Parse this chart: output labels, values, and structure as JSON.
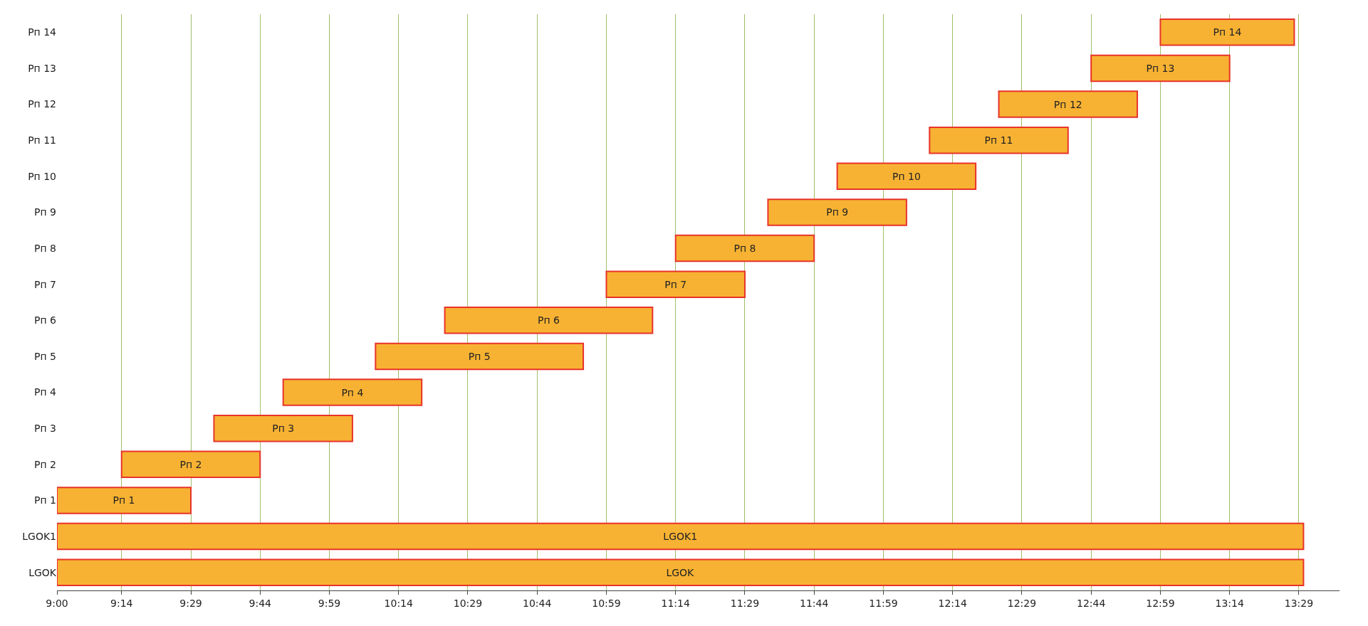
{
  "chart_data": {
    "type": "bar",
    "orientation": "horizontal",
    "categories": [
      "Рп 14",
      "Рп 13",
      "Рп 12",
      "Рп 11",
      "Рп 10",
      "Рп 9",
      "Рп 8",
      "Рп 7",
      "Рп 6",
      "Рп 5",
      "Рп 4",
      "Рп 3",
      "Рп 2",
      "Рп 1",
      "LGOK1",
      "LGOK"
    ],
    "base": [
      12.9833,
      12.7333,
      12.4,
      12.15,
      11.8167,
      11.5667,
      11.2333,
      10.9833,
      10.4,
      10.15,
      9.8167,
      9.5667,
      9.2333,
      9.0,
      9.0,
      9.0
    ],
    "values": [
      0.4833,
      0.5,
      0.5,
      0.5,
      0.5,
      0.5,
      0.5,
      0.5,
      0.75,
      0.75,
      0.5,
      0.5,
      0.5,
      0.4833,
      4.5,
      4.5
    ],
    "value_labels": [
      "Рп 14",
      "Рп 13",
      "Рп 12",
      "Рп 11",
      "Рп 10",
      "Рп 9",
      "Рп 8",
      "Рп 7",
      "Рп 6",
      "Рп 5",
      "Рп 4",
      "Рп 3",
      "Рп 2",
      "Рп 1",
      "LGOK1",
      "LGOK"
    ],
    "color": "#f7b233",
    "xlim": [
      9.0,
      13.63
    ],
    "xticks": [
      {
        "value": 9.0,
        "label": "9:00"
      },
      {
        "value": 9.2333,
        "label": "9:14"
      },
      {
        "value": 9.4833,
        "label": "9:29"
      },
      {
        "value": 9.7333,
        "label": "9:44"
      },
      {
        "value": 9.9833,
        "label": "9:59"
      },
      {
        "value": 10.2333,
        "label": "10:14"
      },
      {
        "value": 10.4833,
        "label": "10:29"
      },
      {
        "value": 10.7333,
        "label": "10:44"
      },
      {
        "value": 10.9833,
        "label": "10:59"
      },
      {
        "value": 11.2333,
        "label": "11:14"
      },
      {
        "value": 11.4833,
        "label": "11:29"
      },
      {
        "value": 11.7333,
        "label": "11:44"
      },
      {
        "value": 11.9833,
        "label": "11:59"
      },
      {
        "value": 12.2333,
        "label": "12:14"
      },
      {
        "value": 12.4833,
        "label": "12:29"
      },
      {
        "value": 12.7333,
        "label": "12:44"
      },
      {
        "value": 12.9833,
        "label": "12:59"
      },
      {
        "value": 13.2333,
        "label": "13:14"
      },
      {
        "value": 13.4833,
        "label": "13:29"
      }
    ],
    "grid": "x"
  }
}
